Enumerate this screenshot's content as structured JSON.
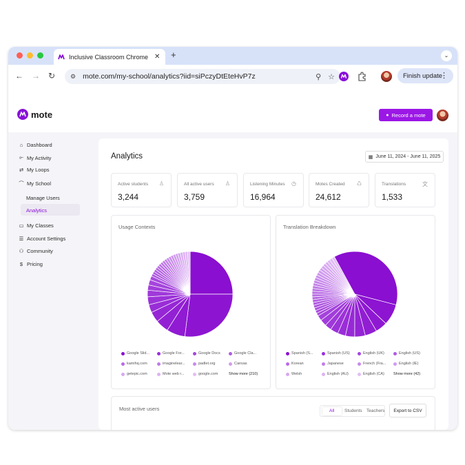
{
  "browser": {
    "tab_title": "Inclusive Classroom Chrome E",
    "tab_close": "✕",
    "new_tab": "+",
    "tab_menu": "⌄",
    "back": "←",
    "forward": "→",
    "reload": "↻",
    "url": "mote.com/my-school/analytics?iid=siPczyDtEteHvP7z",
    "zoom_icon": "⚲",
    "star_icon": "☆",
    "finish_update_label": "Finish update",
    "menu_dots": "⋮"
  },
  "app": {
    "logo_text": "mote",
    "record_label": "Record a mote",
    "record_icon": "🎙"
  },
  "sidebar": {
    "items": [
      {
        "icon": "⌂",
        "label": "Dashboard"
      },
      {
        "icon": "⟜",
        "label": "My Activity"
      },
      {
        "icon": "⇄",
        "label": "My Loops"
      },
      {
        "icon": "⌒",
        "label": "My School"
      },
      {
        "label": "Manage Users"
      },
      {
        "label": "Analytics"
      },
      {
        "icon": "▭",
        "label": "My Classes"
      },
      {
        "icon": "☰",
        "label": "Account Settings"
      },
      {
        "icon": "⚇",
        "label": "Community"
      },
      {
        "icon": "$",
        "label": "Pricing"
      }
    ]
  },
  "main": {
    "title": "Analytics",
    "date_range": "June 11, 2024 - June 11, 2025",
    "date_icon": "▦",
    "stats": [
      {
        "label": "Active students",
        "value": "3,244",
        "icon": "♙"
      },
      {
        "label": "All active users",
        "value": "3,759",
        "icon": "♙"
      },
      {
        "label": "Listening Minutes",
        "value": "16,964",
        "icon": "◷"
      },
      {
        "label": "Motes Created",
        "value": "24,612",
        "icon": "♺"
      },
      {
        "label": "Translations",
        "value": "1,533",
        "icon": "文"
      }
    ],
    "usage": {
      "title": "Usage Contexts",
      "legend": [
        {
          "label": "Google Slid...",
          "color": "#8a0fd0"
        },
        {
          "label": "Google For...",
          "color": "#9c2ddd"
        },
        {
          "label": "Google Docs",
          "color": "#a645e0"
        },
        {
          "label": "Google Cla...",
          "color": "#b05ce4"
        },
        {
          "label": "kamihq.com",
          "color": "#b86ae7"
        },
        {
          "label": "imaginelear...",
          "color": "#c27aea"
        },
        {
          "label": "padlet.org",
          "color": "#c98aed"
        },
        {
          "label": "Canvas",
          "color": "#d29bf0"
        },
        {
          "label": "getepic.com",
          "color": "#d8a7f2"
        },
        {
          "label": "Mote web r...",
          "color": "#ddb2f4"
        },
        {
          "label": "google.com",
          "color": "#e2bdf6"
        }
      ],
      "more": "Show more (210)"
    },
    "translation": {
      "title": "Translation Breakdown",
      "legend": [
        {
          "label": "Spanish (S...",
          "color": "#8a0fd0"
        },
        {
          "label": "Spanish (US)",
          "color": "#9c2ddd"
        },
        {
          "label": "English (UK)",
          "color": "#a645e0"
        },
        {
          "label": "English (US)",
          "color": "#b05ce4"
        },
        {
          "label": "Korean",
          "color": "#b86ae7"
        },
        {
          "label": "Japanese",
          "color": "#c27aea"
        },
        {
          "label": "French (Fra...",
          "color": "#c98aed"
        },
        {
          "label": "English (IE)",
          "color": "#d29bf0"
        },
        {
          "label": "Welsh",
          "color": "#d8a7f2"
        },
        {
          "label": "English (AU)",
          "color": "#ddb2f4"
        },
        {
          "label": "English (CA)",
          "color": "#e2bdf6"
        }
      ],
      "more": "Show more (42)"
    },
    "most_active": {
      "title": "Most active users",
      "filter_all": "All",
      "filter_students": "Students",
      "filter_teachers": "Teachers",
      "export_label": "Export to CSV"
    }
  },
  "chart_data": [
    {
      "type": "pie",
      "title": "Usage Contexts",
      "labels": [
        "Google Slid...",
        "Google For...",
        "Google Docs",
        "Google Cla...",
        "kamihq.com",
        "imaginelear...",
        "padlet.org",
        "Canvas",
        "getepic.com",
        "Mote web r...",
        "google.com"
      ],
      "values": [
        25,
        27,
        7,
        5,
        4,
        3,
        3,
        2.5,
        2,
        2,
        1.5
      ],
      "other_slices": 19,
      "other_total": 18
    },
    {
      "type": "pie",
      "title": "Translation Breakdown",
      "labels": [
        "Spanish (S...",
        "Spanish (US)",
        "English (UK)",
        "English (US)",
        "Korean",
        "Japanese",
        "French (Fra...",
        "English (IE)",
        "Welsh",
        "English (AU)",
        "English (CA)"
      ],
      "values": [
        37,
        8,
        4.5,
        4.5,
        4,
        3.5,
        3,
        3,
        2.5,
        2.5,
        2
      ],
      "other_slices": 24,
      "other_total": 25.5
    }
  ]
}
